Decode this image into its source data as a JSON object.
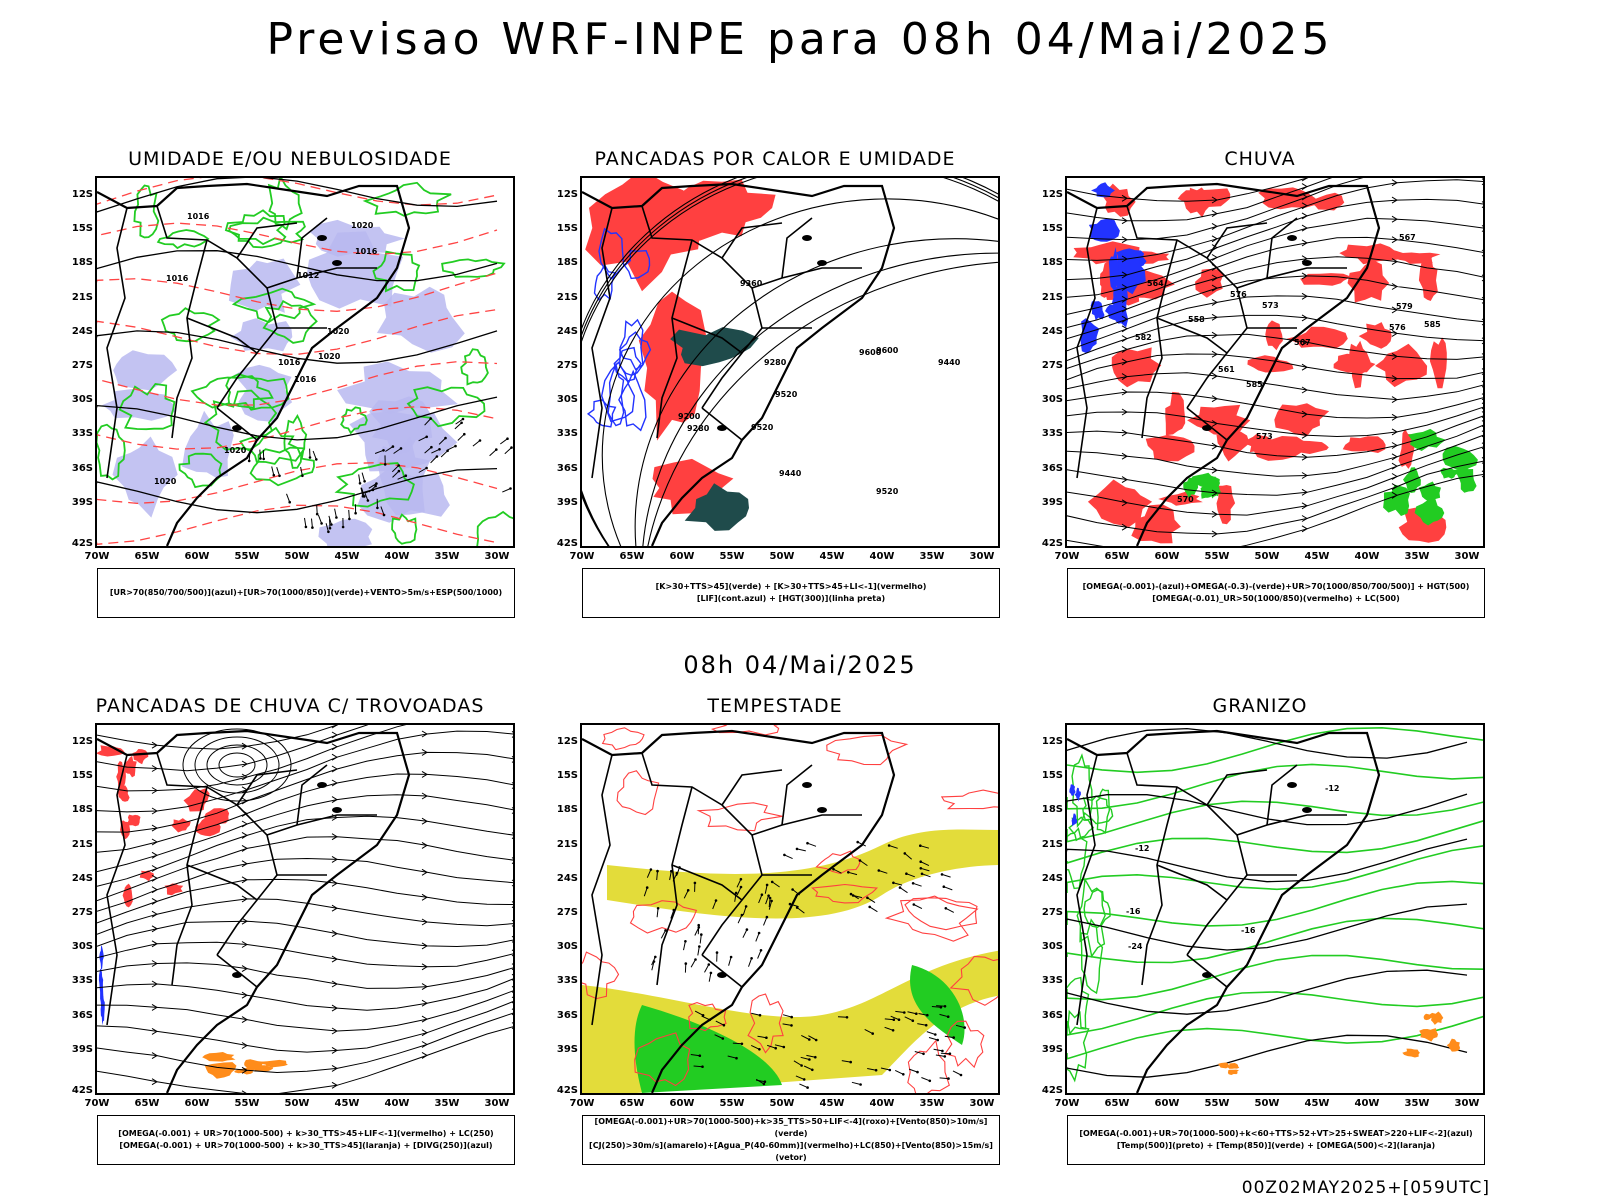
{
  "header": {
    "title": "Previsao WRF-INPE  para 08h 04/Mai/2025",
    "mid_title": "08h 04/Mai/2025",
    "footer": "00Z02MAY2025+[059UTC]"
  },
  "axes": {
    "lat_labels": [
      "12S",
      "15S",
      "18S",
      "21S",
      "24S",
      "27S",
      "30S",
      "33S",
      "36S",
      "39S",
      "42S"
    ],
    "lon_labels": [
      "70W",
      "65W",
      "60W",
      "55W",
      "50W",
      "45W",
      "40W",
      "35W",
      "30W"
    ]
  },
  "panels": [
    {
      "title": "UMIDADE E/OU NEBULOSIDADE",
      "legend": [
        "[UR>70(850/700/500)](azul)+[UR>70(1000/850)](verde)+VENTO>5m/s+ESP(500/1000)"
      ],
      "contour_labels": [
        "1016",
        "1016",
        "1016",
        "1020",
        "1020",
        "1020",
        "1020",
        "1012",
        "1016",
        "1020",
        "1016"
      ],
      "colors": [
        "#b8b8f0",
        "#22cc22",
        "#ff4444"
      ]
    },
    {
      "title": "PANCADAS POR CALOR E UMIDADE",
      "legend": [
        "[K>30+TTS>45](verde) + [K>30+TTS>45+LI<-1](vermelho)",
        "[LIF](cont.azul) + [HGT(300)](linha preta)"
      ],
      "contour_labels": [
        "9600",
        "9520",
        "9600",
        "9520",
        "9440",
        "9360",
        "9280",
        "9200",
        "9520",
        "9440",
        "9280"
      ],
      "colors": [
        "#ff4040",
        "#1f4b4b",
        "#2233ff"
      ]
    },
    {
      "title": "CHUVA",
      "legend": [
        "[OMEGA(-0.001)-(azul)+OMEGA(-0.3)-(verde)+UR>70(1000/850/700/500)] + HGT(500)",
        "[OMEGA(-0.01)_UR>50(1000/850)(vermelho) + LC(500)"
      ],
      "contour_labels": [
        "585",
        "585",
        "582",
        "579",
        "576",
        "573",
        "570",
        "567",
        "564",
        "561",
        "558",
        "573",
        "567",
        "576"
      ],
      "colors": [
        "#ff4040",
        "#2233ff",
        "#22cc22"
      ]
    },
    {
      "title": "PANCADAS DE CHUVA C/ TROVOADAS",
      "legend": [
        "[OMEGA(-0.001) + UR>70(1000-500) + k>30_TTS>45+LIF<-1](vermelho) + LC(250)",
        "[OMEGA(-0.001) + UR>70(1000-500) + k>30_TTS>45](laranja) + [DIVG(250)](azul)"
      ],
      "contour_labels": [],
      "colors": [
        "#ff4040",
        "#ff8c1a",
        "#2233ff"
      ]
    },
    {
      "title": "TEMPESTADE",
      "legend": [
        "[OMEGA(-0.001)+UR>70(1000-500)+k>35_TTS>50+LIF<-4](roxo)+[Vento(850)>10m/s](verde)",
        "[CJ(250)>30m/s](amarelo)+[Agua_P(40-60mm)](vermelho)+LC(850)+[Vento(850)>15m/s](vetor)"
      ],
      "contour_labels": [],
      "colors": [
        "#e3dc3a",
        "#22cc22",
        "#ff4040"
      ]
    },
    {
      "title": "GRANIZO",
      "legend": [
        "[OMEGA(-0.001)+UR>70(1000-500)+k<60+TTS>52+VT>25+SWEAT>220+LIF<-2](azul)",
        "[Temp(500)](preto) + [Temp(850)](verde) + [OMEGA(500)<-2](laranja)"
      ],
      "contour_labels": [
        "-12",
        "-16",
        "-12",
        "-16",
        "-24"
      ],
      "colors": [
        "#22cc22",
        "#ff8c1a",
        "#2233ff"
      ]
    }
  ]
}
